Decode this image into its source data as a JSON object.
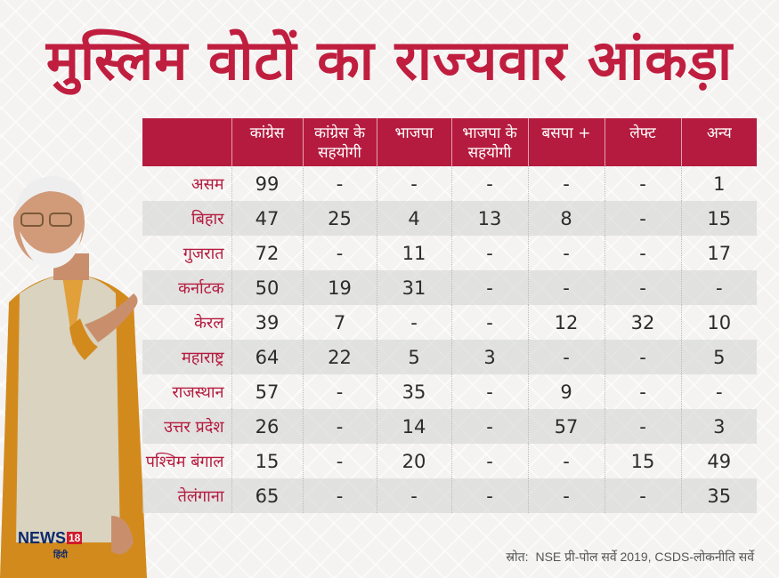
{
  "title": "मुस्लिम वोटों का राज्यवार आंकड़ा",
  "table": {
    "headers": [
      "",
      "कांग्रेस",
      "कांग्रेस के सहयोगी",
      "भाजपा",
      "भाजपा के सहयोगी",
      "बसपा +",
      "लेफ्ट",
      "अन्य"
    ],
    "rows": [
      {
        "state": "असम",
        "values": [
          "99",
          "-",
          "-",
          "-",
          "-",
          "-",
          "1"
        ]
      },
      {
        "state": "बिहार",
        "values": [
          "47",
          "25",
          "4",
          "13",
          "8",
          "-",
          "15"
        ]
      },
      {
        "state": "गुजरात",
        "values": [
          "72",
          "-",
          "11",
          "-",
          "-",
          "-",
          "17"
        ]
      },
      {
        "state": "कर्नाटक",
        "values": [
          "50",
          "19",
          "31",
          "-",
          "-",
          "-",
          "-"
        ]
      },
      {
        "state": "केरल",
        "values": [
          "39",
          "7",
          "-",
          "-",
          "12",
          "32",
          "10"
        ]
      },
      {
        "state": "महाराष्ट्र",
        "values": [
          "64",
          "22",
          "5",
          "3",
          "-",
          "-",
          "5"
        ]
      },
      {
        "state": "राजस्थान",
        "values": [
          "57",
          "-",
          "35",
          "-",
          "9",
          "-",
          "-"
        ]
      },
      {
        "state": "उत्तर प्रदेश",
        "values": [
          "26",
          "-",
          "14",
          "-",
          "57",
          "-",
          "3"
        ]
      },
      {
        "state": "पश्चिम बंगाल",
        "values": [
          "15",
          "-",
          "20",
          "-",
          "-",
          "15",
          "49"
        ]
      },
      {
        "state": "तेलंगाना",
        "values": [
          "65",
          "-",
          "-",
          "-",
          "-",
          "-",
          "35"
        ]
      }
    ]
  },
  "source": {
    "label": "स्रोत:",
    "text": "NSE प्री-पोल सर्वे 2019, CSDS-लोकनीति सर्वे"
  },
  "logo": {
    "brand": "NEWS",
    "number": "18",
    "sub": "हिंदी"
  },
  "colors": {
    "accent": "#b51b3e",
    "title": "#c01e3f"
  }
}
